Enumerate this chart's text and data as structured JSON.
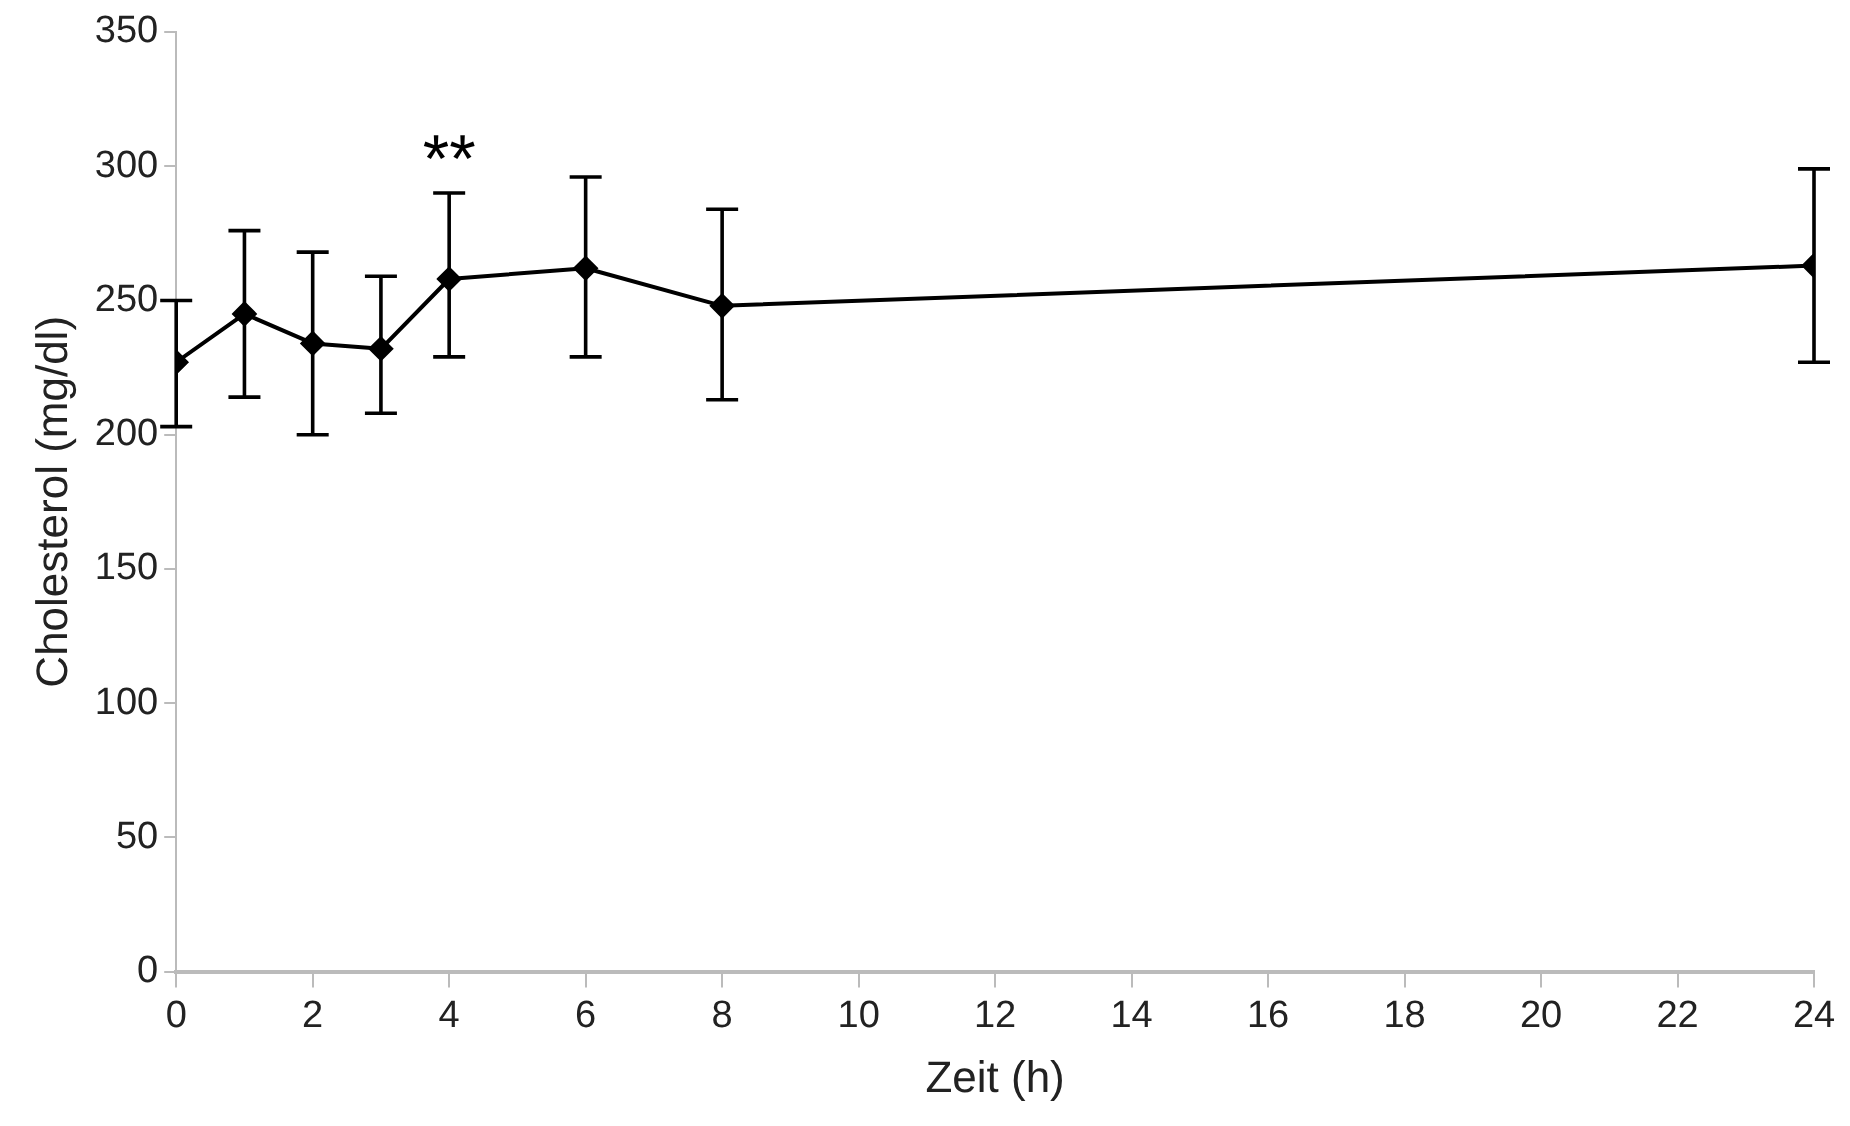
{
  "chart_data": {
    "type": "line",
    "xlabel": "Zeit (h)",
    "ylabel": "Cholesterol (mg/dl)",
    "x": [
      0,
      1,
      2,
      3,
      4,
      6,
      8,
      24
    ],
    "series": [
      {
        "color": "#000000",
        "values": [
          227,
          245,
          234,
          232,
          258,
          262,
          248,
          263
        ],
        "errors": [
          [
            203,
            250
          ],
          [
            214,
            276
          ],
          [
            200,
            268
          ],
          [
            208,
            259
          ],
          [
            229,
            290
          ],
          [
            229,
            296
          ],
          [
            213,
            284
          ],
          [
            227,
            299
          ]
        ]
      }
    ],
    "xlim": [
      0,
      24
    ],
    "xticks": [
      0,
      2,
      4,
      6,
      8,
      10,
      12,
      14,
      16,
      18,
      20,
      22,
      24
    ],
    "ylim": [
      0,
      350
    ],
    "yticks": [
      0,
      50,
      100,
      150,
      200,
      250,
      300,
      350
    ],
    "annotations": [
      {
        "text": "**",
        "x": 4,
        "y": 290
      }
    ],
    "grid": false,
    "legend": false,
    "marker": "diamond",
    "line_style": "solid"
  }
}
